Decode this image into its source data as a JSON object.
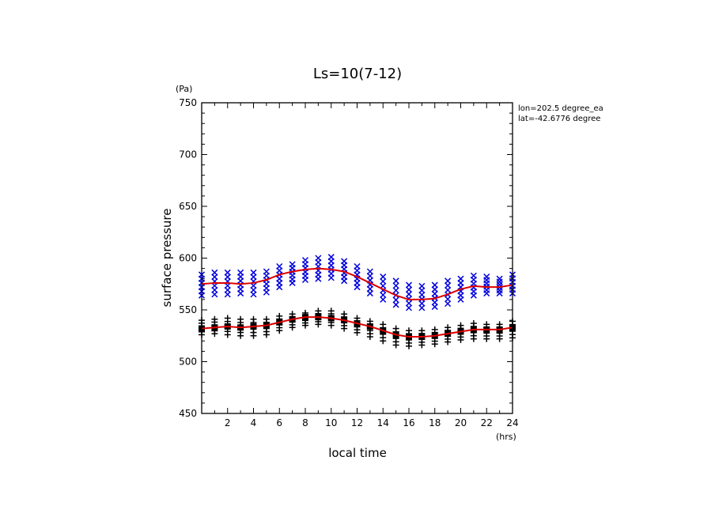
{
  "chart_data": {
    "type": "scatter",
    "title": "Ls=10(7-12)",
    "xlabel": "local time",
    "ylabel": "surface pressure",
    "xunit": "(hrs)",
    "yunit": "(Pa)",
    "xlim": [
      0,
      24
    ],
    "ylim": [
      450,
      750
    ],
    "xticks": [
      "2",
      "4",
      "6",
      "8",
      "10",
      "12",
      "14",
      "16",
      "18",
      "20",
      "22",
      "24"
    ],
    "yticks": [
      "450",
      "500",
      "550",
      "600",
      "650",
      "700",
      "750"
    ],
    "annotations": [
      "lon=202.5 degree_ea",
      "lat=-42.6776 degree"
    ],
    "grid": false,
    "colors": {
      "blue_series": "#0000dd",
      "black_series": "#000000",
      "fit_line": "#dd0000"
    },
    "x": [
      0,
      1,
      2,
      3,
      4,
      5,
      6,
      7,
      8,
      9,
      10,
      11,
      12,
      13,
      14,
      15,
      16,
      17,
      18,
      19,
      20,
      21,
      22,
      23,
      24
    ],
    "series": [
      {
        "marker": "x",
        "color": "#0000dd",
        "scatter_min": [
          564,
          565,
          565,
          566,
          565,
          567,
          572,
          576,
          579,
          580,
          581,
          578,
          572,
          566,
          560,
          555,
          552,
          552,
          553,
          556,
          560,
          564,
          566,
          566,
          566
        ],
        "scatter_max": [
          584,
          586,
          586,
          586,
          586,
          587,
          592,
          594,
          598,
          600,
          601,
          597,
          592,
          587,
          582,
          578,
          574,
          573,
          574,
          578,
          580,
          583,
          582,
          580,
          584
        ],
        "fit": [
          575,
          576,
          576,
          575,
          576,
          579,
          584,
          587,
          589,
          590,
          589,
          587,
          582,
          576,
          570,
          564,
          560,
          560,
          561,
          565,
          570,
          573,
          572,
          572,
          574
        ]
      },
      {
        "marker": "+",
        "color": "#000000",
        "scatter_min": [
          526,
          527,
          526,
          525,
          525,
          526,
          530,
          533,
          535,
          536,
          535,
          532,
          528,
          524,
          520,
          516,
          515,
          516,
          517,
          519,
          521,
          522,
          522,
          522,
          523
        ],
        "scatter_max": [
          540,
          541,
          542,
          541,
          541,
          541,
          544,
          546,
          547,
          549,
          549,
          546,
          542,
          539,
          536,
          532,
          530,
          530,
          531,
          533,
          535,
          537,
          536,
          536,
          539
        ],
        "fit": [
          532,
          533,
          534,
          533,
          534,
          535,
          538,
          541,
          543,
          543,
          542,
          540,
          537,
          534,
          530,
          526,
          524,
          524,
          525,
          527,
          529,
          531,
          531,
          531,
          533
        ]
      }
    ]
  }
}
